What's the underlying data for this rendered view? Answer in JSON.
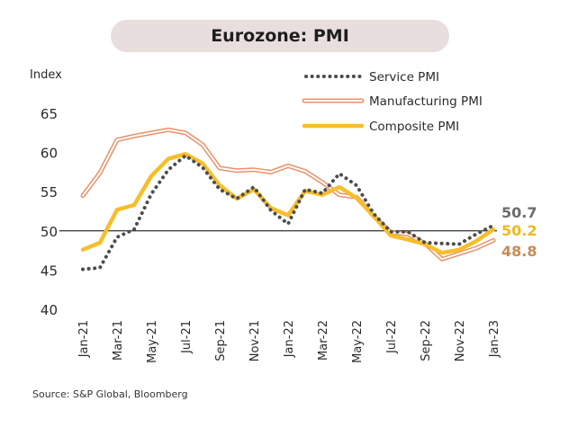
{
  "header": {
    "title": "Eurozone: PMI"
  },
  "source": "Source: S&P Global, Bloomberg",
  "colors": {
    "service": "#4d4d4d",
    "manufacturing": "#e8926a",
    "composite": "#f7be2a",
    "reference_line": "#000000",
    "title_background": "#e7dedd"
  },
  "chart_data": {
    "type": "line",
    "title": "Eurozone: PMI",
    "ylabel": "Index",
    "xlabel": "",
    "ylim": [
      40,
      65
    ],
    "yticks": [
      40,
      45,
      50,
      55,
      60,
      65
    ],
    "reference_line": 50,
    "legend_position": "top-right",
    "x": [
      "Jan-21",
      "Feb-21",
      "Mar-21",
      "Apr-21",
      "May-21",
      "Jun-21",
      "Jul-21",
      "Aug-21",
      "Sep-21",
      "Oct-21",
      "Nov-21",
      "Dec-21",
      "Jan-22",
      "Feb-22",
      "Mar-22",
      "Apr-22",
      "May-22",
      "Jun-22",
      "Jul-22",
      "Aug-22",
      "Sep-22",
      "Oct-22",
      "Nov-22",
      "Dec-22",
      "Jan-23"
    ],
    "x_tick_labels": [
      "Jan-21",
      "Mar-21",
      "May-21",
      "Jul-21",
      "Sep-21",
      "Nov-21",
      "Jan-22",
      "Mar-22",
      "May-22",
      "Jul-22",
      "Sep-22",
      "Nov-22",
      "Jan-23"
    ],
    "series": [
      {
        "name": "Service PMI",
        "style": "dotted",
        "color": "#4d4d4d",
        "values": [
          45.1,
          45.3,
          49.2,
          50.2,
          54.7,
          57.8,
          59.6,
          58.1,
          55.3,
          54.1,
          55.6,
          52.6,
          50.9,
          55.3,
          54.8,
          57.3,
          55.8,
          52.2,
          49.9,
          49.9,
          48.5,
          48.4,
          48.3,
          49.6,
          50.7
        ],
        "end_label": "50.7"
      },
      {
        "name": "Manufacturing PMI",
        "style": "outlined",
        "color": "#e8926a",
        "values": [
          54.5,
          57.4,
          61.6,
          62.1,
          62.5,
          62.9,
          62.5,
          61.0,
          58.0,
          57.7,
          57.8,
          57.5,
          58.3,
          57.6,
          56.2,
          54.6,
          54.3,
          51.9,
          49.8,
          49.6,
          48.4,
          46.4,
          47.1,
          47.8,
          48.8
        ],
        "end_label": "48.8"
      },
      {
        "name": "Composite PMI",
        "style": "solid",
        "color": "#f7be2a",
        "values": [
          47.6,
          48.5,
          52.7,
          53.3,
          57.0,
          59.2,
          59.8,
          58.6,
          55.8,
          54.1,
          55.3,
          52.9,
          52.0,
          55.1,
          54.6,
          55.6,
          54.2,
          51.9,
          49.4,
          48.9,
          48.3,
          47.2,
          47.6,
          48.7,
          50.2
        ],
        "end_label": "50.2"
      }
    ]
  }
}
